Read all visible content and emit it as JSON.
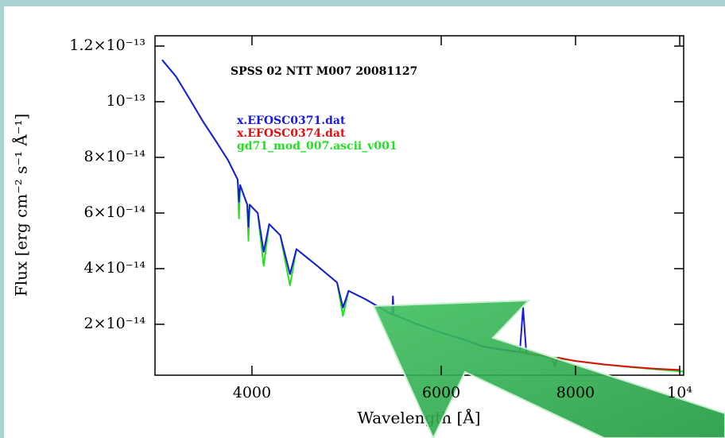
{
  "chart_data": {
    "type": "line",
    "title": "SPSS 02  NTT  M007  20081127",
    "xlabel": "Wavelength [Å]",
    "ylabel": "Flux [erg cm⁻² s⁻¹ Å⁻¹]",
    "xscale": "log",
    "xlim": [
      3250,
      10085
    ],
    "ylim": [
      1.7e-15,
      1.237e-13
    ],
    "xticks": [
      4000,
      6000,
      8000,
      {
        "value": 10000,
        "label": "10⁴"
      }
    ],
    "yticks": [
      {
        "value": 2e-14,
        "label": "2×10⁻¹⁴"
      },
      {
        "value": 4e-14,
        "label": "4×10⁻¹⁴"
      },
      {
        "value": 6e-14,
        "label": "6×10⁻¹⁴"
      },
      {
        "value": 8e-14,
        "label": "8×10⁻¹⁴"
      },
      {
        "value": 1e-13,
        "label": "10⁻¹³"
      },
      {
        "value": 1.2e-13,
        "label": "1.2×10⁻¹³"
      }
    ],
    "x": [
      3300,
      3400,
      3500,
      3600,
      3700,
      3800,
      3880,
      3890,
      3900,
      3960,
      3970,
      3980,
      4050,
      4102,
      4150,
      4250,
      4340,
      4400,
      4600,
      4800,
      4861,
      4920,
      5100,
      5400,
      5410,
      5420,
      5700,
      6000,
      6300,
      6563,
      6800,
      7100,
      7150,
      7200,
      7600,
      7650,
      7700,
      8000,
      8500,
      9000,
      9500,
      10000,
      10085
    ],
    "series": [
      {
        "name": "gd71_mod_007.ascii_v001",
        "color": "#22e022",
        "values": [
          1.15e-13,
          1.09e-13,
          1.01e-13,
          9.3e-14,
          8.6e-14,
          7.9e-14,
          7.2e-14,
          5.8e-14,
          7e-14,
          6.3e-14,
          5e-14,
          6.3e-14,
          6e-14,
          4.1e-14,
          5.6e-14,
          5.2e-14,
          3.4e-14,
          4.7e-14,
          4.1e-14,
          3.5e-14,
          2.3e-14,
          3.2e-14,
          2.9e-14,
          2.35e-14,
          2.34e-14,
          2.33e-14,
          2e-14,
          1.7e-14,
          1.45e-14,
          1.2e-14,
          1.1e-14,
          1e-14,
          9.8e-15,
          9.5e-15,
          8e-15,
          8e-15,
          7.8e-15,
          6.8e-15,
          5.5e-15,
          4.6e-15,
          3.8e-15,
          3.1e-15,
          3e-15
        ]
      },
      {
        "name": "x.EFOSC0374.dat",
        "color": "#e01010",
        "values": [
          null,
          null,
          null,
          null,
          null,
          null,
          null,
          null,
          null,
          null,
          null,
          null,
          null,
          null,
          null,
          null,
          null,
          null,
          null,
          null,
          null,
          null,
          null,
          null,
          null,
          null,
          null,
          null,
          null,
          1.2e-14,
          1.1e-14,
          1e-14,
          1e-14,
          9.5e-15,
          8.2e-15,
          5e-15,
          8e-15,
          6.8e-15,
          5.6e-15,
          4.7e-15,
          4e-15,
          3.6e-15,
          null
        ]
      },
      {
        "name": "x.EFOSC0371.dat",
        "color": "#1a1adc",
        "values": [
          1.15e-13,
          1.09e-13,
          1.01e-13,
          9.3e-14,
          8.6e-14,
          7.9e-14,
          7.2e-14,
          6.4e-14,
          7e-14,
          6.3e-14,
          5.5e-14,
          6.3e-14,
          6e-14,
          4.6e-14,
          5.6e-14,
          5.2e-14,
          3.8e-14,
          4.7e-14,
          4.1e-14,
          3.5e-14,
          2.6e-14,
          3.2e-14,
          2.9e-14,
          2.35e-14,
          3e-14,
          2.35e-14,
          2e-14,
          1.7e-14,
          1.45e-14,
          1.2e-14,
          1.1e-14,
          1e-14,
          2.6e-14,
          9.5e-15,
          null,
          null,
          null,
          null,
          null,
          null,
          null,
          null,
          null
        ]
      }
    ]
  }
}
